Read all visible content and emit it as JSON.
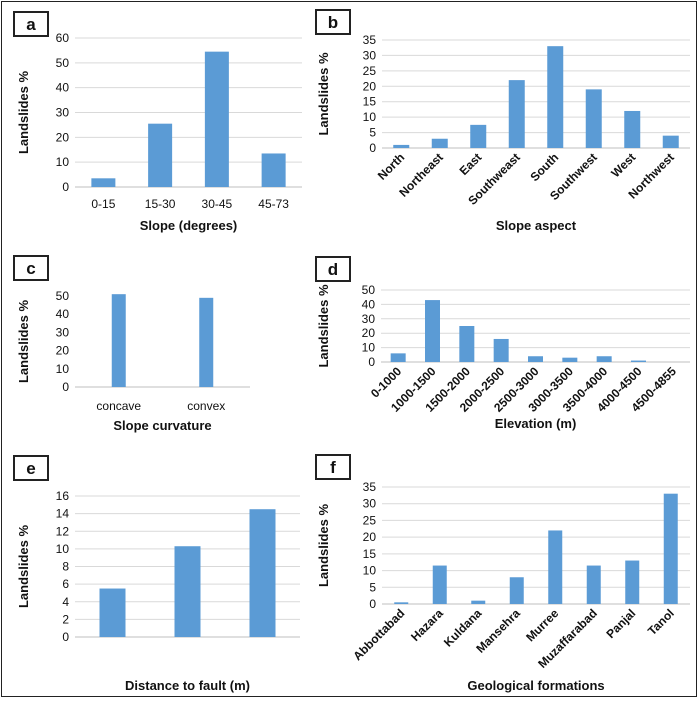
{
  "chart_data": [
    {
      "panel": "a",
      "type": "bar",
      "categories": [
        "0-15",
        "15-30",
        "30-45",
        "45-73"
      ],
      "values": [
        3.5,
        25.5,
        54.5,
        13.5
      ],
      "xlabel": "Slope (degrees)",
      "ylabel": "Landslides %",
      "ylim": [
        0,
        60
      ],
      "yticks": [
        0,
        10,
        20,
        30,
        40,
        50,
        60
      ],
      "grid": true,
      "color": "#5b9bd5"
    },
    {
      "panel": "b",
      "type": "bar",
      "categories": [
        "North",
        "Northeast",
        "East",
        "Southweast",
        "South",
        "Southwest",
        "West",
        "Northwest"
      ],
      "values": [
        1,
        3,
        7.5,
        22,
        33,
        19,
        12,
        4
      ],
      "xlabel": "Slope aspect",
      "ylabel": "Landslides %",
      "ylim": [
        0,
        35
      ],
      "yticks": [
        0,
        5,
        10,
        15,
        20,
        25,
        30,
        35
      ],
      "grid": true,
      "color": "#5b9bd5"
    },
    {
      "panel": "c",
      "type": "bar",
      "categories": [
        "concave",
        "convex"
      ],
      "values": [
        51,
        49
      ],
      "xlabel": "Slope curvature",
      "ylabel": "Landslides %",
      "ylim": [
        0,
        50
      ],
      "yticks": [
        0,
        10,
        20,
        30,
        40,
        50
      ],
      "grid": false,
      "color": "#5b9bd5"
    },
    {
      "panel": "d",
      "type": "bar",
      "categories": [
        "0-1000",
        "1000-1500",
        "1500-2000",
        "2000-2500",
        "2500-3000",
        "3000-3500",
        "3500-4000",
        "4000-4500",
        "4500-4855"
      ],
      "values": [
        6,
        43,
        25,
        16,
        4,
        3,
        4,
        1,
        0
      ],
      "xlabel": "Elevation (m)",
      "ylabel": "Landslides %",
      "ylim": [
        0,
        50
      ],
      "yticks": [
        0,
        10,
        20,
        30,
        40,
        50
      ],
      "grid": true,
      "color": "#5b9bd5"
    },
    {
      "panel": "e",
      "type": "bar",
      "categories": [
        "",
        "",
        ""
      ],
      "values": [
        5.5,
        10.3,
        14.5
      ],
      "xlabel": "Distance to fault (m)",
      "ylabel": "Landslides %",
      "ylim": [
        0,
        16
      ],
      "yticks": [
        0,
        2,
        4,
        6,
        8,
        10,
        12,
        14,
        16
      ],
      "grid": true,
      "color": "#5b9bd5"
    },
    {
      "panel": "f",
      "type": "bar",
      "categories": [
        "Abbottabad",
        "Hazara",
        "Kuldana",
        "Mansehra",
        "Murree",
        "Muzaffarabad",
        "Panjal",
        "Tanol"
      ],
      "values": [
        0.5,
        11.5,
        1,
        8,
        22,
        11.5,
        13,
        33
      ],
      "xlabel": "Geological formations",
      "ylabel": "Landslides %",
      "ylim": [
        0,
        35
      ],
      "yticks": [
        0,
        5,
        10,
        15,
        20,
        25,
        30,
        35
      ],
      "grid": true,
      "color": "#5b9bd5"
    }
  ]
}
